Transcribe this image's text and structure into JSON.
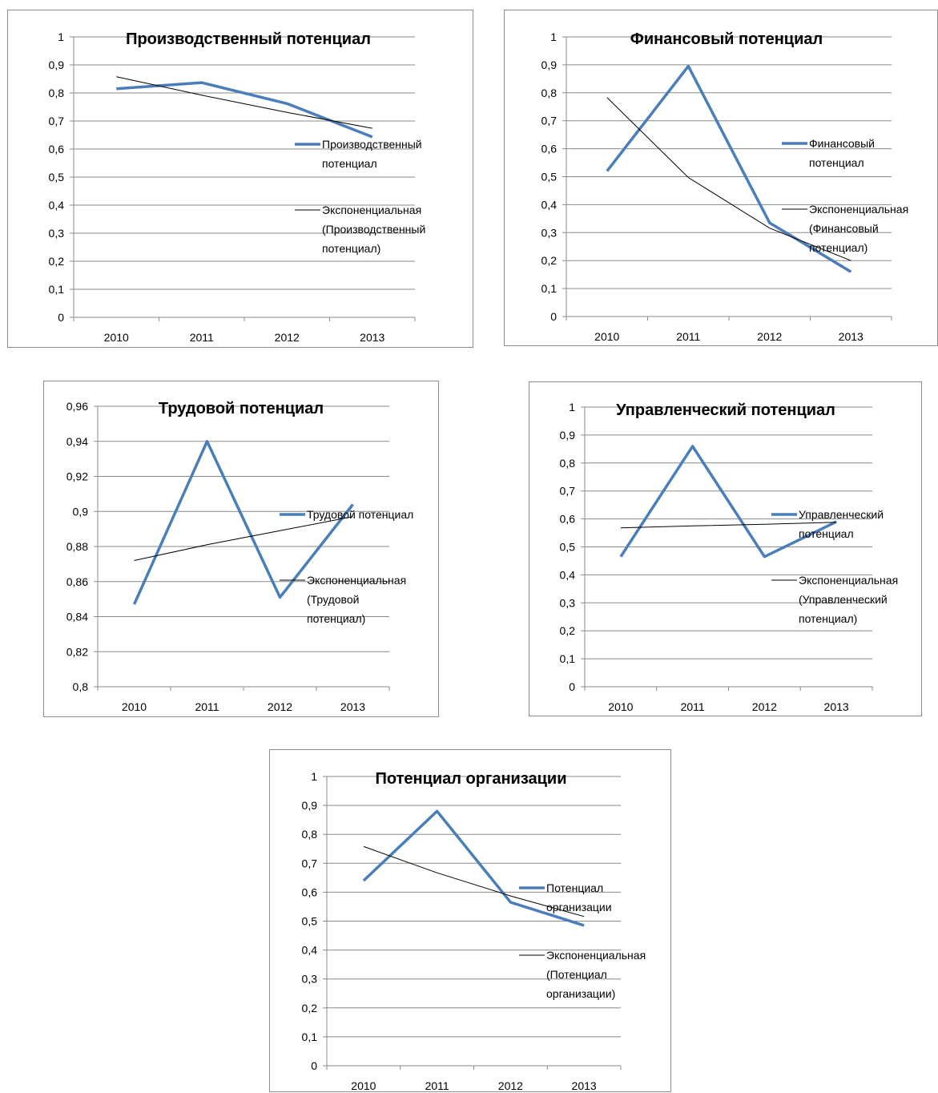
{
  "colors": {
    "series": "#4a7ebb",
    "trend": "#000000"
  },
  "chart_data": [
    {
      "type": "line",
      "title": "Производственный потенциал",
      "categories": [
        "2010",
        "2011",
        "2012",
        "2013"
      ],
      "ylim": [
        0,
        1
      ],
      "yticks": [
        "0",
        "0,1",
        "0,2",
        "0,3",
        "0,4",
        "0,5",
        "0,6",
        "0,7",
        "0,8",
        "0,9",
        "1"
      ],
      "series": [
        {
          "name_lines": [
            "Производственный",
            "потенциал"
          ],
          "values": [
            0.815,
            0.837,
            0.762,
            0.643
          ]
        },
        {
          "name_lines": [
            "Экспоненциальная",
            "(Производственный",
            "потенциал)"
          ],
          "trend": true,
          "values": [
            0.858,
            0.792,
            0.731,
            0.674
          ]
        }
      ],
      "grid": true,
      "legend": "right"
    },
    {
      "type": "line",
      "title": "Финансовый потенциал",
      "categories": [
        "2010",
        "2011",
        "2012",
        "2013"
      ],
      "ylim": [
        0,
        1
      ],
      "yticks": [
        "0",
        "0,1",
        "0,2",
        "0,3",
        "0,4",
        "0,5",
        "0,6",
        "0,7",
        "0,8",
        "0,9",
        "1"
      ],
      "series": [
        {
          "name_lines": [
            "Финансовый",
            "потенциал"
          ],
          "values": [
            0.52,
            0.895,
            0.335,
            0.16
          ]
        },
        {
          "name_lines": [
            "Экспоненциальная",
            "(Финансовый",
            "потенциал)"
          ],
          "trend": true,
          "values": [
            0.783,
            0.497,
            0.316,
            0.2
          ]
        }
      ],
      "grid": true,
      "legend": "right"
    },
    {
      "type": "line",
      "title": "Трудовой потенциал",
      "categories": [
        "2010",
        "2011",
        "2012",
        "2013"
      ],
      "ylim": [
        0.8,
        0.96
      ],
      "yticks": [
        "0,8",
        "0,82",
        "0,84",
        "0,86",
        "0,88",
        "0,9",
        "0,92",
        "0,94",
        "0,96"
      ],
      "series": [
        {
          "name_lines": [
            "Трудовой потенциал"
          ],
          "values": [
            0.847,
            0.94,
            0.851,
            0.904
          ]
        },
        {
          "name_lines": [
            "Экспоненциальная",
            "(Трудовой",
            "потенциал)"
          ],
          "trend": true,
          "values": [
            0.872,
            0.881,
            0.889,
            0.897
          ]
        }
      ],
      "grid": true,
      "legend": "right"
    },
    {
      "type": "line",
      "title": "Управленческий потенциал",
      "categories": [
        "2010",
        "2011",
        "2012",
        "2013"
      ],
      "ylim": [
        0,
        1
      ],
      "yticks": [
        "0",
        "0,1",
        "0,2",
        "0,3",
        "0,4",
        "0,5",
        "0,6",
        "0,7",
        "0,8",
        "0,9",
        "1"
      ],
      "series": [
        {
          "name_lines": [
            "Управленческий",
            "потенциал"
          ],
          "values": [
            0.465,
            0.86,
            0.465,
            0.59
          ]
        },
        {
          "name_lines": [
            "Экспоненциальная",
            "(Управленческий",
            "потенциал)"
          ],
          "trend": true,
          "values": [
            0.568,
            0.575,
            0.581,
            0.588
          ]
        }
      ],
      "grid": true,
      "legend": "right"
    },
    {
      "type": "line",
      "title": "Потенциал организации",
      "categories": [
        "2010",
        "2011",
        "2012",
        "2013"
      ],
      "ylim": [
        0,
        1
      ],
      "yticks": [
        "0",
        "0,1",
        "0,2",
        "0,3",
        "0,4",
        "0,5",
        "0,6",
        "0,7",
        "0,8",
        "0,9",
        "1"
      ],
      "series": [
        {
          "name_lines": [
            "Потенциал",
            "организации"
          ],
          "values": [
            0.64,
            0.88,
            0.565,
            0.485
          ]
        },
        {
          "name_lines": [
            "Экспоненциальная",
            "(Потенциал",
            "организации)"
          ],
          "trend": true,
          "values": [
            0.758,
            0.667,
            0.587,
            0.516
          ]
        }
      ],
      "grid": true,
      "legend": "right"
    }
  ]
}
